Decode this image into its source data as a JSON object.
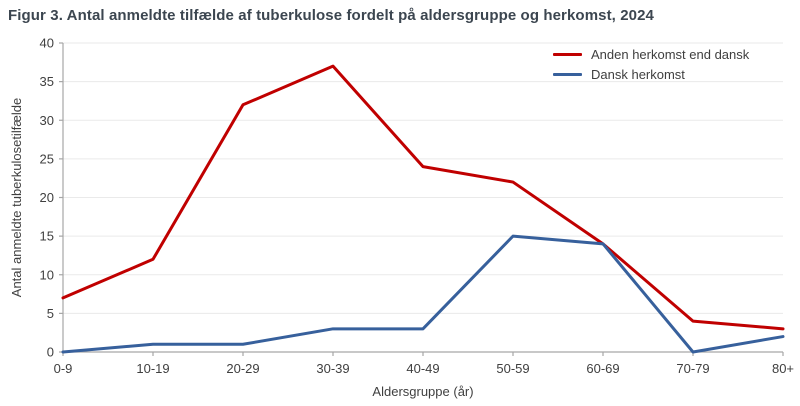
{
  "title": "Figur 3. Antal anmeldte tilfælde af tuberkulose fordelt på aldersgruppe og herkomst, 2024",
  "colors": {
    "background": "#ffffff",
    "title_text": "#3c4650",
    "axis_text": "#3f3f3f",
    "axis_line": "#a6a6a6",
    "gridline": "#eaeaea",
    "series_red": "#c00000",
    "series_blue": "#37609c"
  },
  "chart_data": {
    "type": "line",
    "title": "Figur 3. Antal anmeldte tilfælde af tuberkulose fordelt på aldersgruppe og herkomst, 2024",
    "categories": [
      "0-9",
      "10-19",
      "20-29",
      "30-39",
      "40-49",
      "50-59",
      "60-69",
      "70-79",
      "80+"
    ],
    "series": [
      {
        "name": "Anden herkomst end dansk",
        "color": "#c00000",
        "values": [
          7,
          12,
          32,
          37,
          24,
          22,
          14,
          4,
          3
        ]
      },
      {
        "name": "Dansk herkomst",
        "color": "#37609c",
        "values": [
          0,
          1,
          1,
          3,
          3,
          15,
          14,
          0,
          2
        ]
      }
    ],
    "xlabel": "Aldersgruppe (år)",
    "ylabel": "Antal anmeldte tuberkulosetilfælde",
    "ylim": [
      0,
      40
    ],
    "ytick_step": 5,
    "yticks": [
      0,
      5,
      10,
      15,
      20,
      25,
      30,
      35,
      40
    ],
    "grid": true,
    "legend_position": "top-right"
  }
}
